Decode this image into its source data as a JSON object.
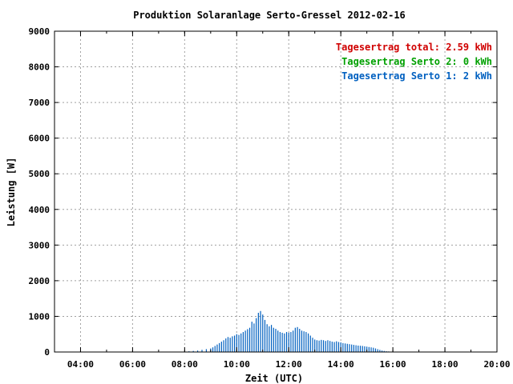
{
  "colors": {
    "background": "#ffffff",
    "axis": "#000000",
    "grid": "#a0a0a0",
    "total": "#d00000",
    "serto2": "#00a000",
    "serto1": "#0060c0"
  },
  "chart_data": {
    "type": "bar",
    "title": "Produktion Solaranlage Serto-Gressel 2012-02-16",
    "xlabel": "Zeit (UTC)",
    "ylabel": "Leistung [W]",
    "xlim": [
      "03:00",
      "20:00"
    ],
    "ylim": [
      0,
      9000
    ],
    "yticks": [
      0,
      1000,
      2000,
      3000,
      4000,
      5000,
      6000,
      7000,
      8000,
      9000
    ],
    "xticks": [
      "04:00",
      "06:00",
      "08:00",
      "10:00",
      "12:00",
      "14:00",
      "16:00",
      "18:00",
      "20:00"
    ],
    "grid": true,
    "legend_position": "top-right",
    "legend": [
      {
        "label": "Tagesertrag total: 2.59 kWh",
        "color": "#d00000"
      },
      {
        "label": "Tagesertrag Serto 2: 0 kWh",
        "color": "#00a000"
      },
      {
        "label": "Tagesertrag Serto 1: 2 kWh",
        "color": "#0060c0"
      }
    ],
    "series": [
      {
        "name": "Serto 1",
        "color": "#0060c0",
        "x": [
          "08:00",
          "08:10",
          "08:20",
          "08:30",
          "08:40",
          "08:50",
          "09:00",
          "09:05",
          "09:10",
          "09:15",
          "09:20",
          "09:25",
          "09:30",
          "09:35",
          "09:40",
          "09:45",
          "09:50",
          "09:55",
          "10:00",
          "10:05",
          "10:10",
          "10:15",
          "10:20",
          "10:25",
          "10:30",
          "10:35",
          "10:40",
          "10:45",
          "10:50",
          "10:55",
          "11:00",
          "11:05",
          "11:10",
          "11:15",
          "11:20",
          "11:25",
          "11:30",
          "11:35",
          "11:40",
          "11:45",
          "11:50",
          "11:55",
          "12:00",
          "12:05",
          "12:10",
          "12:15",
          "12:20",
          "12:25",
          "12:30",
          "12:35",
          "12:40",
          "12:45",
          "12:50",
          "12:55",
          "13:00",
          "13:05",
          "13:10",
          "13:15",
          "13:20",
          "13:25",
          "13:30",
          "13:35",
          "13:40",
          "13:45",
          "13:50",
          "13:55",
          "14:00",
          "14:05",
          "14:10",
          "14:15",
          "14:20",
          "14:25",
          "14:30",
          "14:35",
          "14:40",
          "14:45",
          "14:50",
          "14:55",
          "15:00",
          "15:05",
          "15:10",
          "15:15",
          "15:20",
          "15:25",
          "15:30",
          "15:35",
          "15:40",
          "15:45",
          "15:50",
          "15:55",
          "16:00"
        ],
        "values": [
          10,
          20,
          30,
          40,
          60,
          80,
          100,
          130,
          170,
          210,
          250,
          290,
          330,
          380,
          420,
          400,
          440,
          460,
          500,
          480,
          520,
          560,
          600,
          640,
          680,
          850,
          800,
          950,
          1100,
          1150,
          1050,
          900,
          780,
          720,
          760,
          680,
          650,
          600,
          560,
          540,
          520,
          560,
          540,
          560,
          600,
          680,
          700,
          650,
          600,
          580,
          560,
          520,
          460,
          400,
          350,
          330,
          320,
          340,
          330,
          310,
          330,
          310,
          290,
          280,
          300,
          280,
          270,
          250,
          240,
          230,
          220,
          210,
          200,
          190,
          180,
          175,
          170,
          160,
          150,
          140,
          130,
          120,
          100,
          80,
          60,
          40,
          30,
          20,
          15,
          10,
          5
        ]
      }
    ]
  }
}
